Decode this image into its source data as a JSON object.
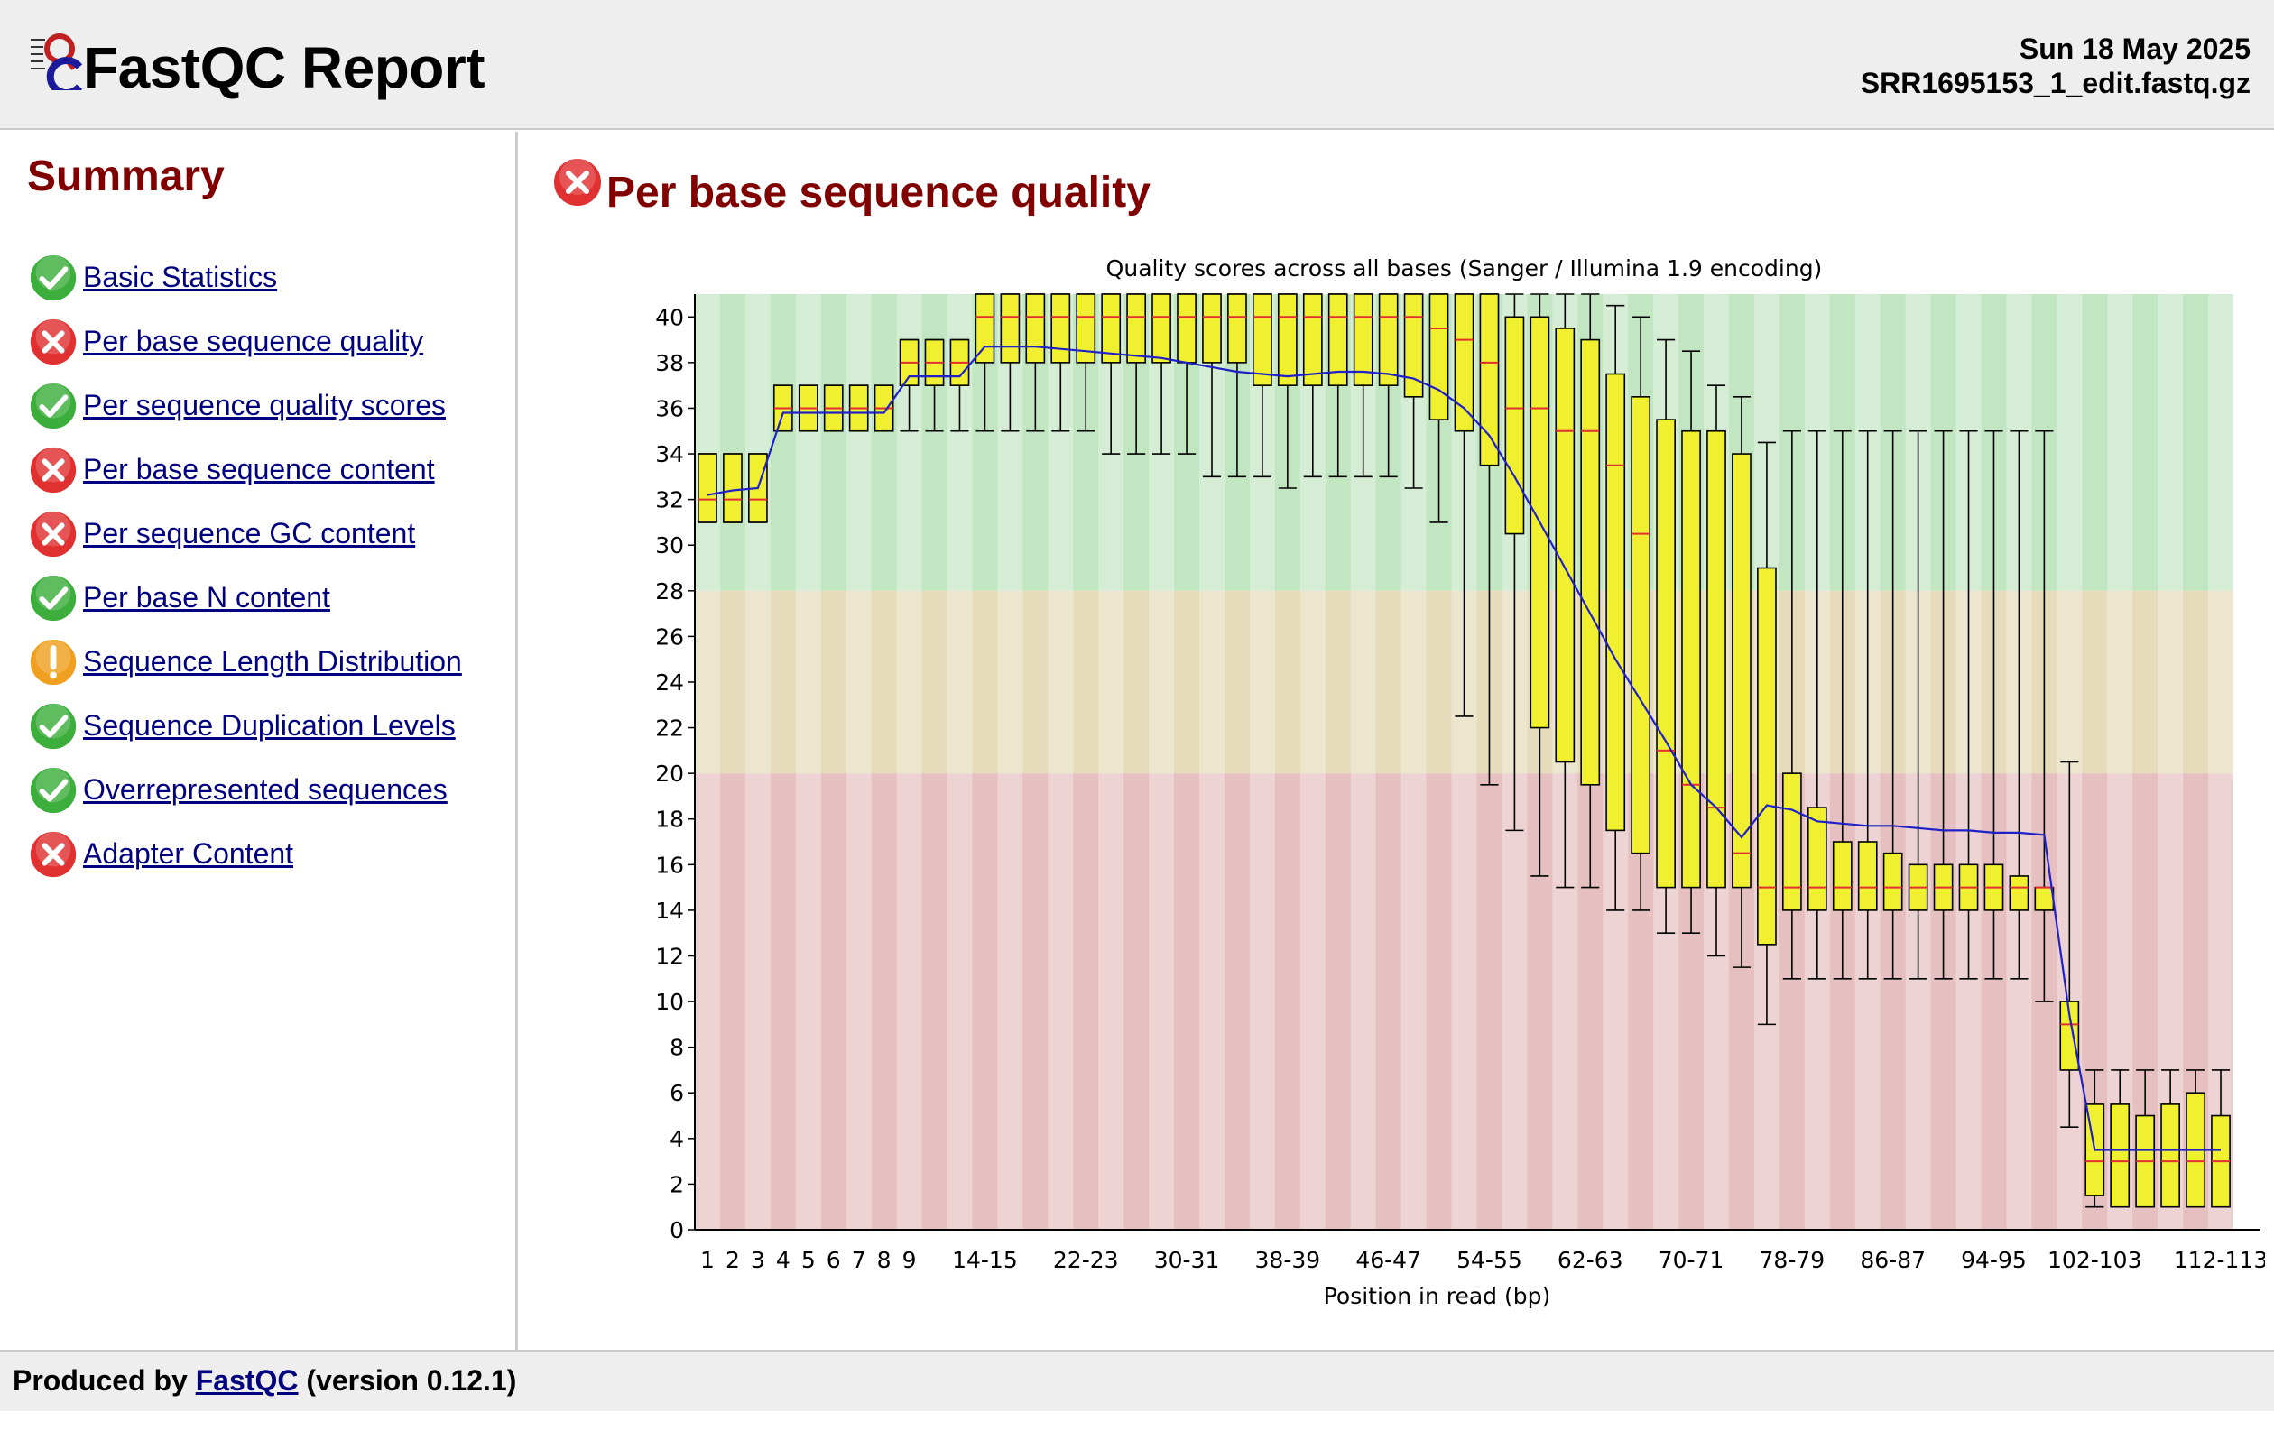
{
  "header": {
    "logo_icon": "fastqc-logo-icon",
    "title": "FastQC Report",
    "date": "Sun 18 May 2025",
    "filename": "SRR1695153_1_edit.fastq.gz"
  },
  "summary": {
    "title": "Summary",
    "items": [
      {
        "label": "Basic Statistics",
        "status": "pass"
      },
      {
        "label": "Per base sequence quality",
        "status": "fail"
      },
      {
        "label": "Per sequence quality scores",
        "status": "pass"
      },
      {
        "label": "Per base sequence content",
        "status": "fail"
      },
      {
        "label": "Per sequence GC content",
        "status": "fail"
      },
      {
        "label": "Per base N content",
        "status": "pass"
      },
      {
        "label": "Sequence Length Distribution",
        "status": "warn"
      },
      {
        "label": "Sequence Duplication Levels",
        "status": "pass"
      },
      {
        "label": "Overrepresented sequences",
        "status": "pass"
      },
      {
        "label": "Adapter Content",
        "status": "fail"
      }
    ]
  },
  "main": {
    "title": "Per base sequence quality",
    "status": "fail"
  },
  "colors": {
    "pass": "#3cae3c",
    "fail": "#e03030",
    "warn": "#f0a020",
    "heading": "#800000",
    "link": "#000080",
    "zone_good": "#c2e6c2",
    "zone_warn": "#e6dcbb",
    "zone_bad": "#e6c0c0",
    "box_fill": "#f0f030",
    "median": "#e03030",
    "mean_line": "#2020c8"
  },
  "footer": {
    "prefix": "Produced by",
    "link": "FastQC",
    "suffix": "(version 0.12.1)"
  },
  "chart_data": {
    "type": "boxplot",
    "title": "Quality scores across all bases (Sanger / Illumina 1.9 encoding)",
    "xlabel": "Position in read (bp)",
    "ylabel": "",
    "ylim": [
      0,
      41
    ],
    "yticks": [
      0,
      2,
      4,
      6,
      8,
      10,
      12,
      14,
      16,
      18,
      20,
      22,
      24,
      26,
      28,
      30,
      32,
      34,
      36,
      38,
      40
    ],
    "zones": [
      {
        "name": "good",
        "from": 28,
        "to": 41
      },
      {
        "name": "acceptable",
        "from": 20,
        "to": 28
      },
      {
        "name": "poor",
        "from": 0,
        "to": 20
      }
    ],
    "categories": [
      "1",
      "2",
      "3",
      "4",
      "5",
      "6",
      "7",
      "8",
      "9",
      "10-11",
      "12-13",
      "14-15",
      "16-17",
      "18-19",
      "20-21",
      "22-23",
      "24-25",
      "26-27",
      "28-29",
      "30-31",
      "32-33",
      "34-35",
      "36-37",
      "38-39",
      "40-41",
      "42-43",
      "44-45",
      "46-47",
      "48-49",
      "50-51",
      "52-53",
      "54-55",
      "56-57",
      "58-59",
      "60-61",
      "62-63",
      "64-65",
      "66-67",
      "68-69",
      "70-71",
      "72-73",
      "74-75",
      "76-77",
      "78-79",
      "80-81",
      "82-83",
      "84-85",
      "86-87",
      "88-89",
      "90-91",
      "92-93",
      "94-95",
      "96-97",
      "98-99",
      "100-101",
      "102-103",
      "104-105",
      "106-107",
      "108-109",
      "110-111",
      "112-113"
    ],
    "xtick_labels": [
      "1",
      "2",
      "3",
      "4",
      "5",
      "6",
      "7",
      "8",
      "9",
      "14-15",
      "22-23",
      "30-31",
      "38-39",
      "46-47",
      "54-55",
      "62-63",
      "70-71",
      "78-79",
      "86-87",
      "94-95",
      "102-103",
      "112-113"
    ],
    "lower_whisker": [
      31,
      31,
      31,
      35,
      35,
      35,
      35,
      35,
      35,
      35,
      35,
      35,
      35,
      35,
      35,
      35,
      34,
      34,
      34,
      34,
      33,
      33,
      33,
      32.5,
      33,
      33,
      33,
      33,
      32.5,
      31,
      22.5,
      19.5,
      17.5,
      15.5,
      15,
      15,
      14,
      14,
      13,
      13,
      12,
      11.5,
      9,
      11,
      11,
      11,
      11,
      11,
      11,
      11,
      11,
      11,
      11,
      10,
      4.5,
      1,
      1,
      1,
      1,
      1,
      1
    ],
    "q1": [
      31,
      31,
      31,
      35,
      35,
      35,
      35,
      35,
      37,
      37,
      37,
      38,
      38,
      38,
      38,
      38,
      38,
      38,
      38,
      38,
      38,
      38,
      37,
      37,
      37,
      37,
      37,
      37,
      36.5,
      35.5,
      35,
      33.5,
      30.5,
      22,
      20.5,
      19.5,
      17.5,
      16.5,
      15,
      15,
      15,
      15,
      12.5,
      14,
      14,
      14,
      14,
      14,
      14,
      14,
      14,
      14,
      14,
      14,
      7,
      1.5,
      1,
      1,
      1,
      1,
      1
    ],
    "median": [
      32,
      32,
      32,
      36,
      36,
      36,
      36,
      36,
      38,
      38,
      38,
      40,
      40,
      40,
      40,
      40,
      40,
      40,
      40,
      40,
      40,
      40,
      40,
      40,
      40,
      40,
      40,
      40,
      40,
      39.5,
      39,
      38,
      36,
      36,
      35,
      35,
      33.5,
      30.5,
      21,
      19.5,
      18.5,
      16.5,
      15,
      15,
      15,
      15,
      15,
      15,
      15,
      15,
      15,
      15,
      15,
      15,
      9,
      3,
      3,
      3,
      3,
      3,
      3
    ],
    "q3": [
      34,
      34,
      34,
      37,
      37,
      37,
      37,
      37,
      39,
      39,
      39,
      41,
      41,
      41,
      41,
      41,
      41,
      41,
      41,
      41,
      41,
      41,
      41,
      41,
      41,
      41,
      41,
      41,
      41,
      41,
      41,
      41,
      40,
      40,
      39.5,
      39,
      37.5,
      36.5,
      35.5,
      35,
      35,
      34,
      29,
      20,
      18.5,
      17,
      17,
      16.5,
      16,
      16,
      16,
      16,
      15.5,
      15,
      10,
      5.5,
      5.5,
      5,
      5.5,
      6,
      5
    ],
    "upper_whisker": [
      34,
      34,
      34,
      37,
      37,
      37,
      37,
      37,
      39,
      39,
      39,
      41,
      41,
      41,
      41,
      41,
      41,
      41,
      41,
      41,
      41,
      41,
      41,
      41,
      41,
      41,
      41,
      41,
      41,
      41,
      41,
      41,
      41,
      41,
      41,
      41,
      40.5,
      40,
      39,
      38.5,
      37,
      36.5,
      34.5,
      35,
      35,
      35,
      35,
      35,
      35,
      35,
      35,
      35,
      35,
      35,
      20.5,
      7,
      7,
      7,
      7,
      7,
      7
    ],
    "mean": [
      32.2,
      32.4,
      32.5,
      35.8,
      35.8,
      35.8,
      35.8,
      35.8,
      37.4,
      37.4,
      37.4,
      38.7,
      38.7,
      38.7,
      38.6,
      38.5,
      38.4,
      38.3,
      38.2,
      38.0,
      37.8,
      37.6,
      37.5,
      37.4,
      37.5,
      37.6,
      37.6,
      37.5,
      37.3,
      36.8,
      36.0,
      34.8,
      33.0,
      31.0,
      29.0,
      27.0,
      25.0,
      23.2,
      21.4,
      19.5,
      18.5,
      17.2,
      18.6,
      18.4,
      17.9,
      17.8,
      17.7,
      17.7,
      17.6,
      17.5,
      17.5,
      17.4,
      17.4,
      17.3,
      9.4,
      3.5,
      3.5,
      3.5,
      3.5,
      3.5,
      3.5
    ]
  }
}
